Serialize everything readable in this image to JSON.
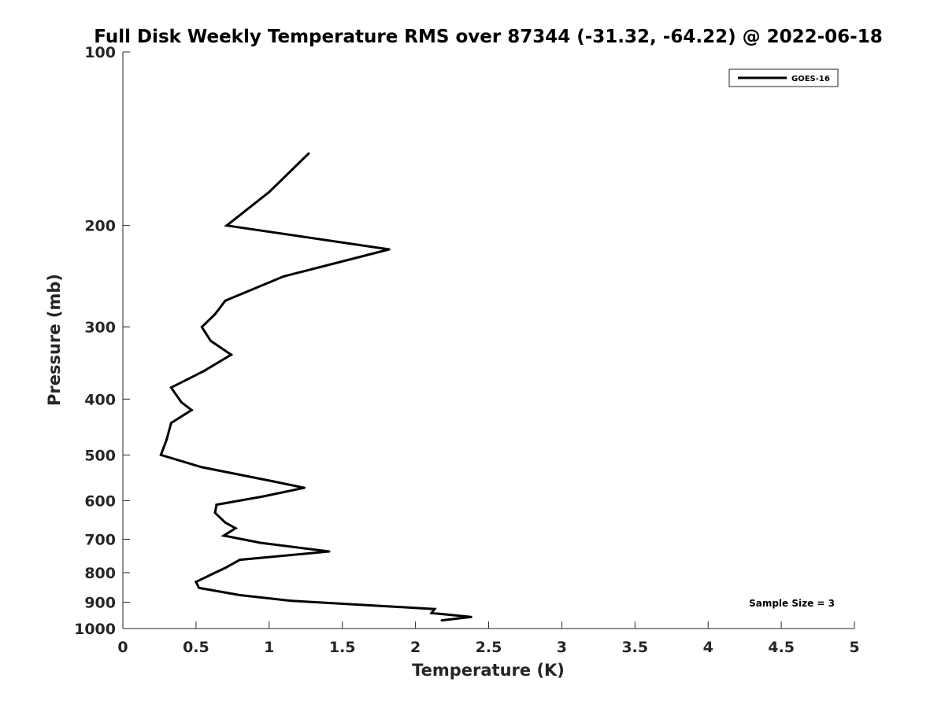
{
  "chart_data": {
    "type": "line",
    "title": "Full Disk Weekly Temperature RMS over 87344 (-31.32, -64.22) @ 2022-06-18",
    "xlabel": "Temperature (K)",
    "ylabel": "Pressure (mb)",
    "xlim": [
      0,
      5
    ],
    "ylim": [
      100,
      1000
    ],
    "y_scale": "log",
    "y_reversed": true,
    "x_ticks": [
      "0",
      "0.5",
      "1",
      "1.5",
      "2",
      "2.5",
      "3",
      "3.5",
      "4",
      "4.5",
      "5"
    ],
    "y_ticks": [
      "100",
      "200",
      "300",
      "400",
      "500",
      "600",
      "700",
      "800",
      "900",
      "1000"
    ],
    "grid": false,
    "legend_position": "top-right",
    "annotation": "Sample Size = 3",
    "series": [
      {
        "name": "GOES-16",
        "color": "#000000",
        "points": [
          [
            1.27,
            150
          ],
          [
            1.0,
            175
          ],
          [
            0.71,
            200
          ],
          [
            1.82,
            220
          ],
          [
            1.1,
            245
          ],
          [
            0.7,
            270
          ],
          [
            0.63,
            285
          ],
          [
            0.54,
            300
          ],
          [
            0.6,
            317
          ],
          [
            0.74,
            335
          ],
          [
            0.55,
            358
          ],
          [
            0.33,
            382
          ],
          [
            0.4,
            405
          ],
          [
            0.47,
            418
          ],
          [
            0.33,
            440
          ],
          [
            0.3,
            470
          ],
          [
            0.26,
            500
          ],
          [
            0.54,
            525
          ],
          [
            1.02,
            555
          ],
          [
            1.24,
            570
          ],
          [
            0.96,
            590
          ],
          [
            0.64,
            610
          ],
          [
            0.63,
            630
          ],
          [
            0.7,
            655
          ],
          [
            0.77,
            670
          ],
          [
            0.69,
            690
          ],
          [
            0.94,
            710
          ],
          [
            1.41,
            735
          ],
          [
            0.8,
            760
          ],
          [
            0.7,
            785
          ],
          [
            0.63,
            800
          ],
          [
            0.5,
            830
          ],
          [
            0.52,
            850
          ],
          [
            0.8,
            875
          ],
          [
            1.15,
            895
          ],
          [
            2.13,
            925
          ],
          [
            2.11,
            940
          ],
          [
            2.38,
            955
          ],
          [
            2.18,
            968
          ]
        ]
      }
    ]
  }
}
